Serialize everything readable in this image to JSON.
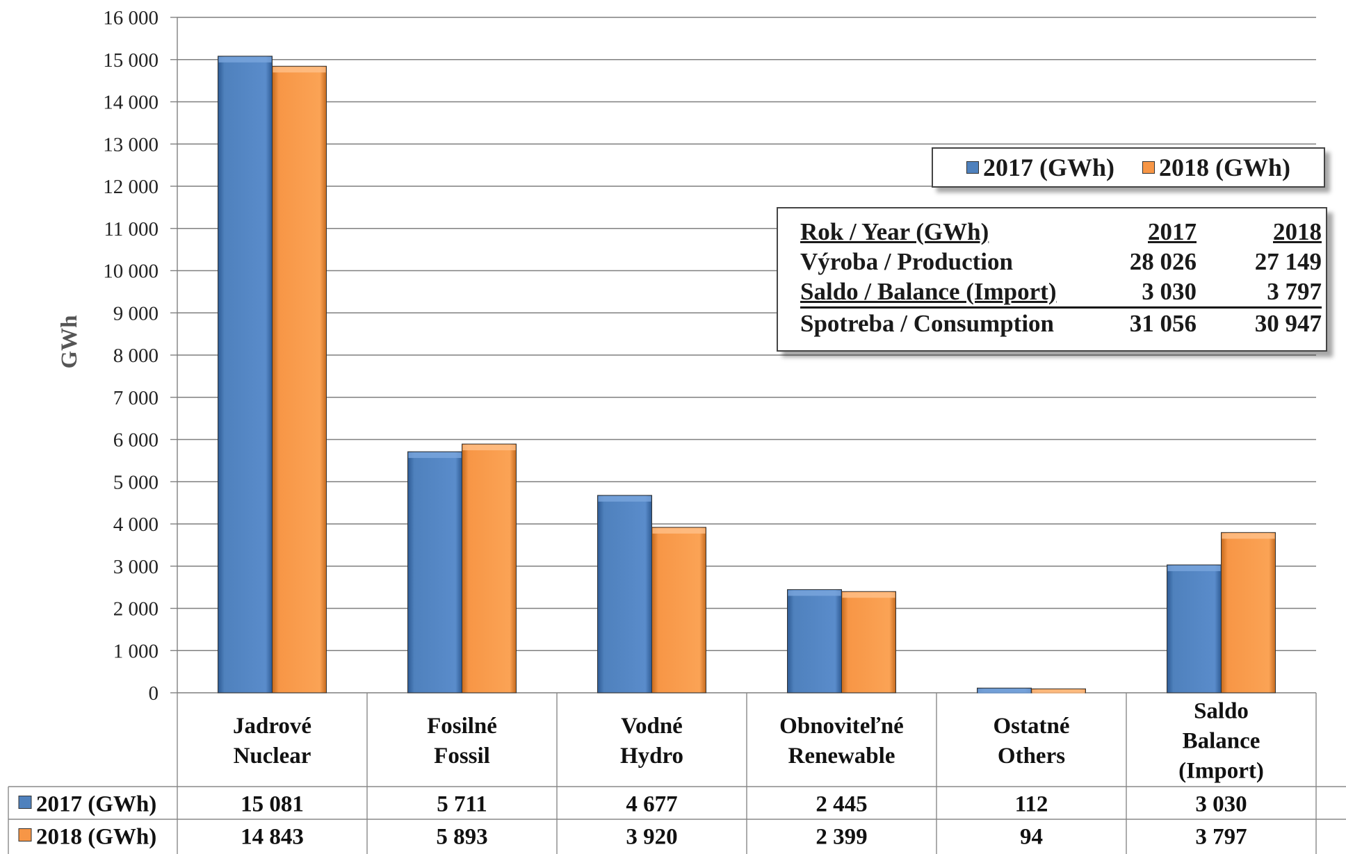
{
  "chart_data": {
    "type": "bar",
    "ylabel": "GWh",
    "ylim": [
      0,
      16000
    ],
    "yticks": [
      "0",
      "1 000",
      "2 000",
      "3 000",
      "4 000",
      "5 000",
      "6 000",
      "7 000",
      "8 000",
      "9 000",
      "10 000",
      "11 000",
      "12 000",
      "13 000",
      "14 000",
      "15 000",
      "16 000"
    ],
    "grid": true,
    "categories": [
      [
        "Jadrové",
        "Nuclear"
      ],
      [
        "Fosilné",
        "Fossil"
      ],
      [
        "Vodné",
        "Hydro"
      ],
      [
        "Obnoviteľné",
        "Renewable"
      ],
      [
        "Ostatné",
        "Others"
      ],
      [
        "Saldo",
        "Balance",
        "(Import)"
      ]
    ],
    "series": [
      {
        "name": "2017 (GWh)",
        "color": "#4f81bd",
        "values": [
          15081,
          5711,
          4677,
          2445,
          112,
          3030
        ],
        "labels": [
          "15 081",
          "5 711",
          "4 677",
          "2 445",
          "112",
          "3 030"
        ]
      },
      {
        "name": "2018 (GWh)",
        "color": "#f79646",
        "values": [
          14843,
          5893,
          3920,
          2399,
          94,
          3797
        ],
        "labels": [
          "14 843",
          "5 893",
          "3 920",
          "2 399",
          "94",
          "3 797"
        ]
      }
    ],
    "legend": {
      "position": "top-right"
    }
  },
  "summary": {
    "header": [
      "Rok  / Year (GWh)",
      "2017",
      "2018"
    ],
    "rows": [
      [
        "Výroba / Production",
        "28 026",
        "27 149"
      ],
      [
        "Saldo / Balance (Import)",
        "3 030",
        "3 797"
      ]
    ],
    "total": [
      "Spotreba / Consumption",
      "31 056",
      "30 947"
    ]
  }
}
